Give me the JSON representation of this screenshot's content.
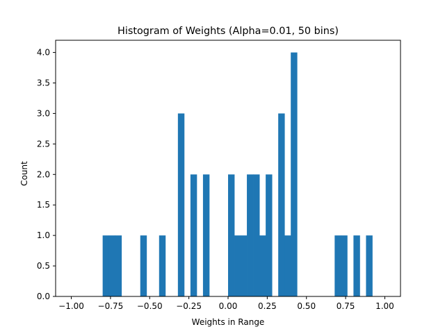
{
  "chart_data": {
    "type": "bar",
    "title": "Histogram of Weights (Alpha=0.01, 50 bins)",
    "xlabel": "Weights in Range",
    "ylabel": "Count",
    "xlim": [
      -1.1,
      1.1
    ],
    "ylim": [
      0.0,
      4.2
    ],
    "grid": false,
    "legend": "none",
    "bar_color": "#1f77b4",
    "bin_range": [
      -1.0,
      1.0
    ],
    "bins": 50,
    "counts": [
      0,
      0,
      0,
      0,
      0,
      1,
      1,
      1,
      0,
      0,
      0,
      1,
      0,
      0,
      1,
      0,
      0,
      3,
      0,
      2,
      0,
      2,
      0,
      0,
      0,
      2,
      1,
      1,
      2,
      2,
      1,
      2,
      0,
      3,
      1,
      4,
      0,
      0,
      0,
      0,
      0,
      0,
      1,
      1,
      0,
      1,
      0,
      1,
      0,
      0
    ],
    "xticks": [
      -1.0,
      -0.75,
      -0.5,
      -0.25,
      0.0,
      0.25,
      0.5,
      0.75,
      1.0
    ],
    "xtick_labels": [
      "−1.00",
      "−0.75",
      "−0.50",
      "−0.25",
      "0.00",
      "0.25",
      "0.50",
      "0.75",
      "1.00"
    ],
    "yticks": [
      0.0,
      0.5,
      1.0,
      1.5,
      2.0,
      2.5,
      3.0,
      3.5,
      4.0
    ],
    "ytick_labels": [
      "0.0",
      "0.5",
      "1.0",
      "1.5",
      "2.0",
      "2.5",
      "3.0",
      "3.5",
      "4.0"
    ]
  }
}
